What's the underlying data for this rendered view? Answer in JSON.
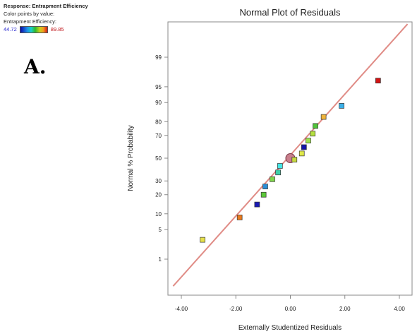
{
  "legend": {
    "response": "Response: Entrapment Efficiency",
    "color_note": "Color points by value:",
    "color_name": "Entrapment Efficiency:",
    "min": "44.72",
    "max": "89.85"
  },
  "panel_label": "A.",
  "chart_data": {
    "type": "scatter",
    "title": "Normal Plot of Residuals",
    "xlabel": "Externally Studentized Residuals",
    "ylabel": "Normal % Probability",
    "x_ticks": [
      "-4.00",
      "-2.00",
      "0.00",
      "2.00",
      "4.00"
    ],
    "x_tick_values": [
      -4,
      -2,
      0,
      2,
      4
    ],
    "y_ticks": [
      "1",
      "5",
      "10",
      "20",
      "30",
      "50",
      "70",
      "80",
      "90",
      "95",
      "99"
    ],
    "y_tick_values": [
      1,
      5,
      10,
      20,
      30,
      50,
      70,
      80,
      90,
      95,
      99
    ],
    "y_scale": "normal probability",
    "xlim": [
      -4.4,
      4.4
    ],
    "reference_line": {
      "x": [
        -4.3,
        4.3
      ],
      "y": [
        0.16,
        99.9
      ]
    },
    "points": [
      {
        "x": -3.22,
        "y": 3.0,
        "color": "#e6e04a"
      },
      {
        "x": -1.86,
        "y": 8.6,
        "color": "#ea7a1e"
      },
      {
        "x": -1.22,
        "y": 14.3,
        "color": "#1a1ab4"
      },
      {
        "x": -0.98,
        "y": 20.0,
        "color": "#5cc83a"
      },
      {
        "x": -0.92,
        "y": 25.7,
        "color": "#2d8fd8"
      },
      {
        "x": -0.66,
        "y": 31.4,
        "color": "#7fd64a"
      },
      {
        "x": -0.45,
        "y": 37.1,
        "color": "#3ed0a8"
      },
      {
        "x": -0.38,
        "y": 42.9,
        "color": "#44e6e6"
      },
      {
        "x": 0.0,
        "y": 50.0,
        "color": "#c97f8c",
        "marker": "circle"
      },
      {
        "x": 0.15,
        "y": 48.6,
        "color": "#c8d840"
      },
      {
        "x": 0.42,
        "y": 54.3,
        "color": "#dfe84a"
      },
      {
        "x": 0.5,
        "y": 60.0,
        "color": "#1414a8"
      },
      {
        "x": 0.66,
        "y": 65.7,
        "color": "#9ee24a"
      },
      {
        "x": 0.82,
        "y": 71.4,
        "color": "#b4e040"
      },
      {
        "x": 0.92,
        "y": 77.1,
        "color": "#52c43a"
      },
      {
        "x": 1.22,
        "y": 82.9,
        "color": "#f0b43a"
      },
      {
        "x": 1.88,
        "y": 88.6,
        "color": "#3ab0e8"
      },
      {
        "x": 3.22,
        "y": 96.3,
        "color": "#d21414"
      }
    ]
  }
}
